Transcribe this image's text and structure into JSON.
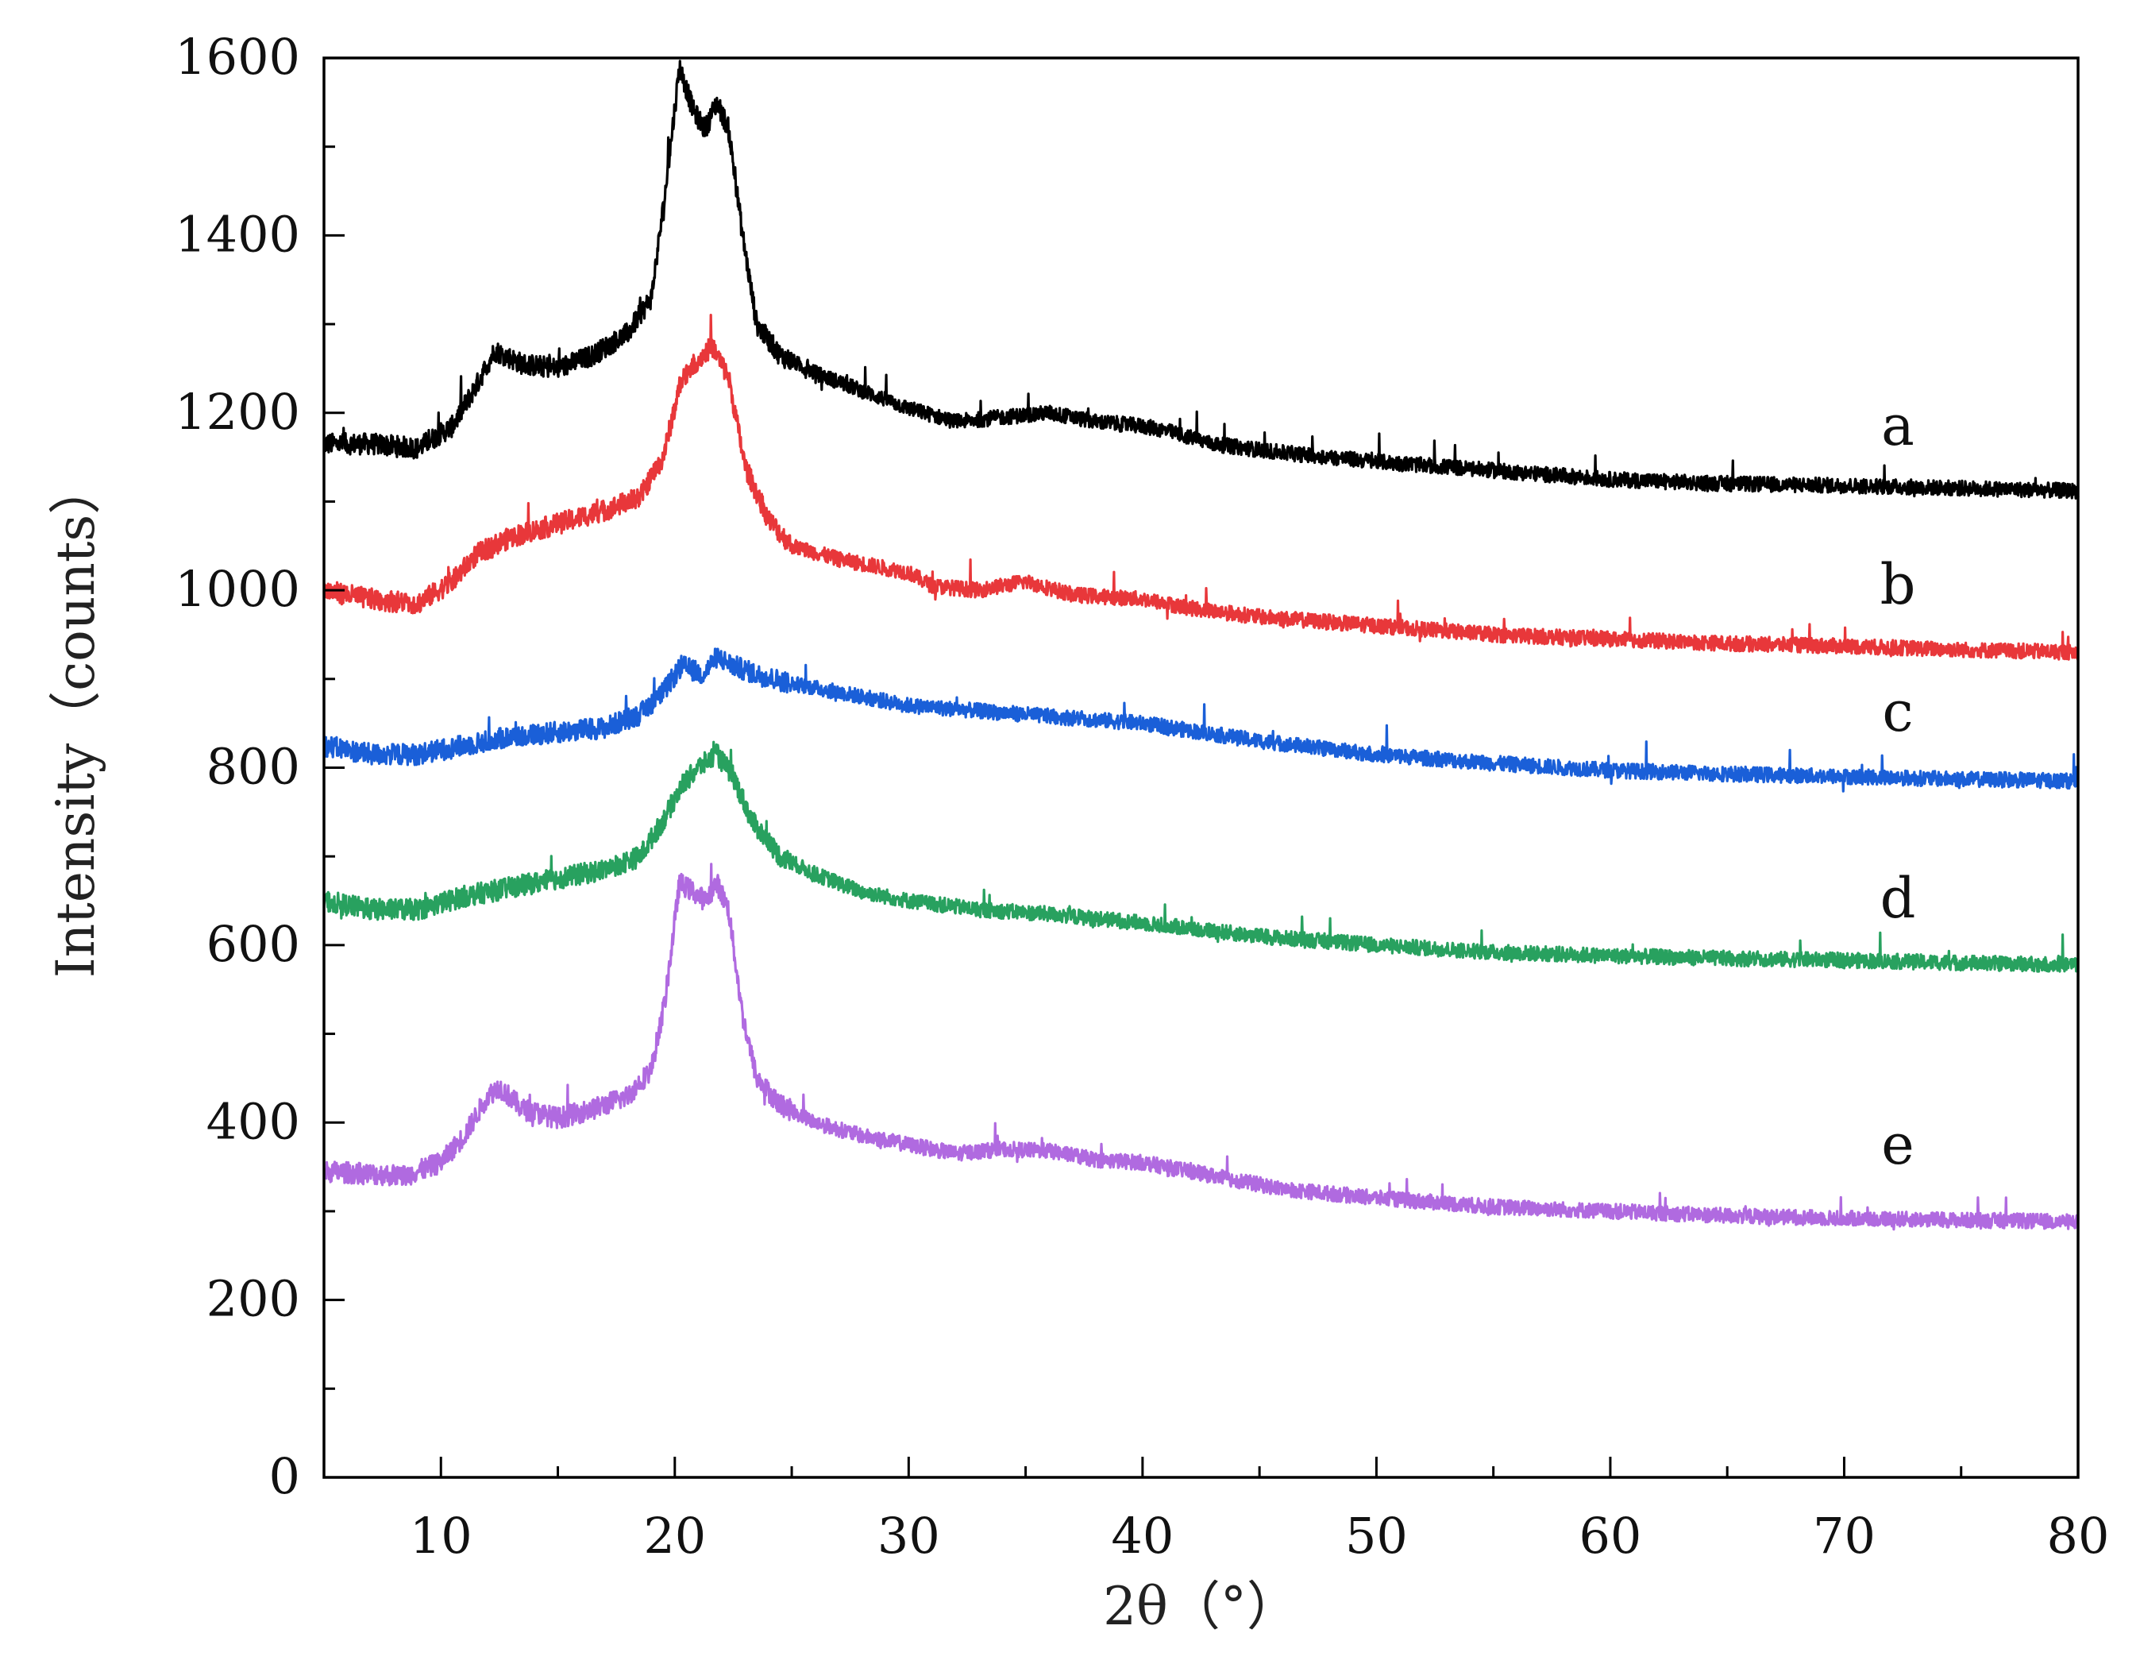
{
  "chart_data": {
    "type": "line",
    "title": "",
    "xlabel": "2θ（°）",
    "ylabel": "Intensity（counts）",
    "xlim": [
      5,
      80
    ],
    "ylim": [
      0,
      1600
    ],
    "xticks": [
      10,
      20,
      30,
      40,
      50,
      60,
      70,
      80
    ],
    "yticks": [
      0,
      200,
      400,
      600,
      800,
      1000,
      1200,
      1400,
      1600
    ],
    "x_tick_labels": [
      "10",
      "20",
      "30",
      "40",
      "50",
      "60",
      "70",
      "80"
    ],
    "y_tick_labels": [
      "0",
      "200",
      "400",
      "600",
      "800",
      "1000",
      "1200",
      "1400",
      "1600"
    ],
    "grid": false,
    "noise": "spiky diffraction noise, roughly ±20 counts",
    "series": [
      {
        "name": "a",
        "label": "a",
        "color": "#000000",
        "points": [
          [
            5,
            1165
          ],
          [
            7,
            1165
          ],
          [
            9,
            1160
          ],
          [
            10.5,
            1185
          ],
          [
            11.5,
            1230
          ],
          [
            12.3,
            1270
          ],
          [
            13.5,
            1255
          ],
          [
            15,
            1250
          ],
          [
            16.5,
            1265
          ],
          [
            18,
            1290
          ],
          [
            19,
            1330
          ],
          [
            19.6,
            1450
          ],
          [
            20.2,
            1590
          ],
          [
            20.8,
            1540
          ],
          [
            21.3,
            1520
          ],
          [
            21.8,
            1550
          ],
          [
            22.3,
            1520
          ],
          [
            22.9,
            1400
          ],
          [
            23.5,
            1300
          ],
          [
            24.5,
            1265
          ],
          [
            26,
            1245
          ],
          [
            28,
            1225
          ],
          [
            30,
            1205
          ],
          [
            32,
            1190
          ],
          [
            34,
            1195
          ],
          [
            36,
            1200
          ],
          [
            38,
            1190
          ],
          [
            40,
            1185
          ],
          [
            41,
            1180
          ],
          [
            43,
            1165
          ],
          [
            46,
            1155
          ],
          [
            50,
            1145
          ],
          [
            55,
            1135
          ],
          [
            60,
            1125
          ],
          [
            65,
            1120
          ],
          [
            70,
            1118
          ],
          [
            75,
            1115
          ],
          [
            80,
            1112
          ]
        ]
      },
      {
        "name": "b",
        "label": "b",
        "color": "#e8373a",
        "points": [
          [
            5,
            1000
          ],
          [
            7,
            990
          ],
          [
            9,
            985
          ],
          [
            10.5,
            1010
          ],
          [
            11.5,
            1040
          ],
          [
            13,
            1060
          ],
          [
            15,
            1075
          ],
          [
            17,
            1090
          ],
          [
            18.5,
            1105
          ],
          [
            19.5,
            1150
          ],
          [
            20.3,
            1240
          ],
          [
            21,
            1260
          ],
          [
            21.6,
            1275
          ],
          [
            22.3,
            1240
          ],
          [
            23,
            1140
          ],
          [
            24,
            1080
          ],
          [
            25,
            1050
          ],
          [
            27,
            1035
          ],
          [
            29,
            1025
          ],
          [
            30,
            1020
          ],
          [
            31,
            1005
          ],
          [
            33,
            1000
          ],
          [
            35,
            1010
          ],
          [
            37,
            995
          ],
          [
            40,
            990
          ],
          [
            42,
            980
          ],
          [
            45,
            970
          ],
          [
            50,
            960
          ],
          [
            55,
            950
          ],
          [
            60,
            945
          ],
          [
            65,
            940
          ],
          [
            70,
            937
          ],
          [
            75,
            933
          ],
          [
            80,
            930
          ]
        ]
      },
      {
        "name": "c",
        "label": "c",
        "color": "#1a5fd8",
        "points": [
          [
            5,
            825
          ],
          [
            7,
            815
          ],
          [
            9,
            815
          ],
          [
            11,
            825
          ],
          [
            13,
            835
          ],
          [
            15,
            840
          ],
          [
            17,
            845
          ],
          [
            18.5,
            860
          ],
          [
            19.5,
            885
          ],
          [
            20.3,
            915
          ],
          [
            21.2,
            905
          ],
          [
            21.8,
            925
          ],
          [
            22.5,
            915
          ],
          [
            23.5,
            905
          ],
          [
            25,
            895
          ],
          [
            27,
            885
          ],
          [
            30,
            870
          ],
          [
            35,
            860
          ],
          [
            40,
            850
          ],
          [
            45,
            830
          ],
          [
            50,
            815
          ],
          [
            55,
            805
          ],
          [
            60,
            797
          ],
          [
            65,
            793
          ],
          [
            70,
            790
          ],
          [
            75,
            787
          ],
          [
            80,
            785
          ]
        ]
      },
      {
        "name": "d",
        "label": "d",
        "color": "#28a15f",
        "points": [
          [
            5,
            650
          ],
          [
            7,
            640
          ],
          [
            9,
            640
          ],
          [
            11,
            655
          ],
          [
            13,
            665
          ],
          [
            15,
            675
          ],
          [
            17,
            685
          ],
          [
            18.5,
            700
          ],
          [
            19.5,
            740
          ],
          [
            20.3,
            780
          ],
          [
            21,
            800
          ],
          [
            21.8,
            815
          ],
          [
            22.5,
            790
          ],
          [
            23.3,
            740
          ],
          [
            24.5,
            700
          ],
          [
            26,
            680
          ],
          [
            28,
            660
          ],
          [
            30,
            650
          ],
          [
            33,
            640
          ],
          [
            36,
            635
          ],
          [
            40,
            625
          ],
          [
            45,
            610
          ],
          [
            50,
            600
          ],
          [
            55,
            592
          ],
          [
            60,
            588
          ],
          [
            65,
            585
          ],
          [
            70,
            583
          ],
          [
            75,
            580
          ],
          [
            80,
            578
          ]
        ]
      },
      {
        "name": "e",
        "label": "e",
        "color": "#b06ae0",
        "points": [
          [
            5,
            345
          ],
          [
            7,
            342
          ],
          [
            8.5,
            340
          ],
          [
            10,
            355
          ],
          [
            11,
            385
          ],
          [
            12,
            430
          ],
          [
            12.5,
            440
          ],
          [
            13.5,
            415
          ],
          [
            15,
            405
          ],
          [
            16.5,
            415
          ],
          [
            18,
            430
          ],
          [
            19,
            460
          ],
          [
            19.6,
            540
          ],
          [
            20.2,
            670
          ],
          [
            20.8,
            660
          ],
          [
            21.3,
            650
          ],
          [
            21.8,
            670
          ],
          [
            22.3,
            640
          ],
          [
            22.9,
            520
          ],
          [
            23.5,
            450
          ],
          [
            24.5,
            420
          ],
          [
            26,
            400
          ],
          [
            28,
            385
          ],
          [
            30,
            375
          ],
          [
            32,
            365
          ],
          [
            34,
            370
          ],
          [
            36,
            368
          ],
          [
            38,
            358
          ],
          [
            40,
            355
          ],
          [
            41,
            350
          ],
          [
            43,
            340
          ],
          [
            46,
            325
          ],
          [
            50,
            315
          ],
          [
            55,
            305
          ],
          [
            60,
            300
          ],
          [
            65,
            295
          ],
          [
            70,
            292
          ],
          [
            75,
            290
          ],
          [
            80,
            288
          ]
        ]
      }
    ]
  }
}
